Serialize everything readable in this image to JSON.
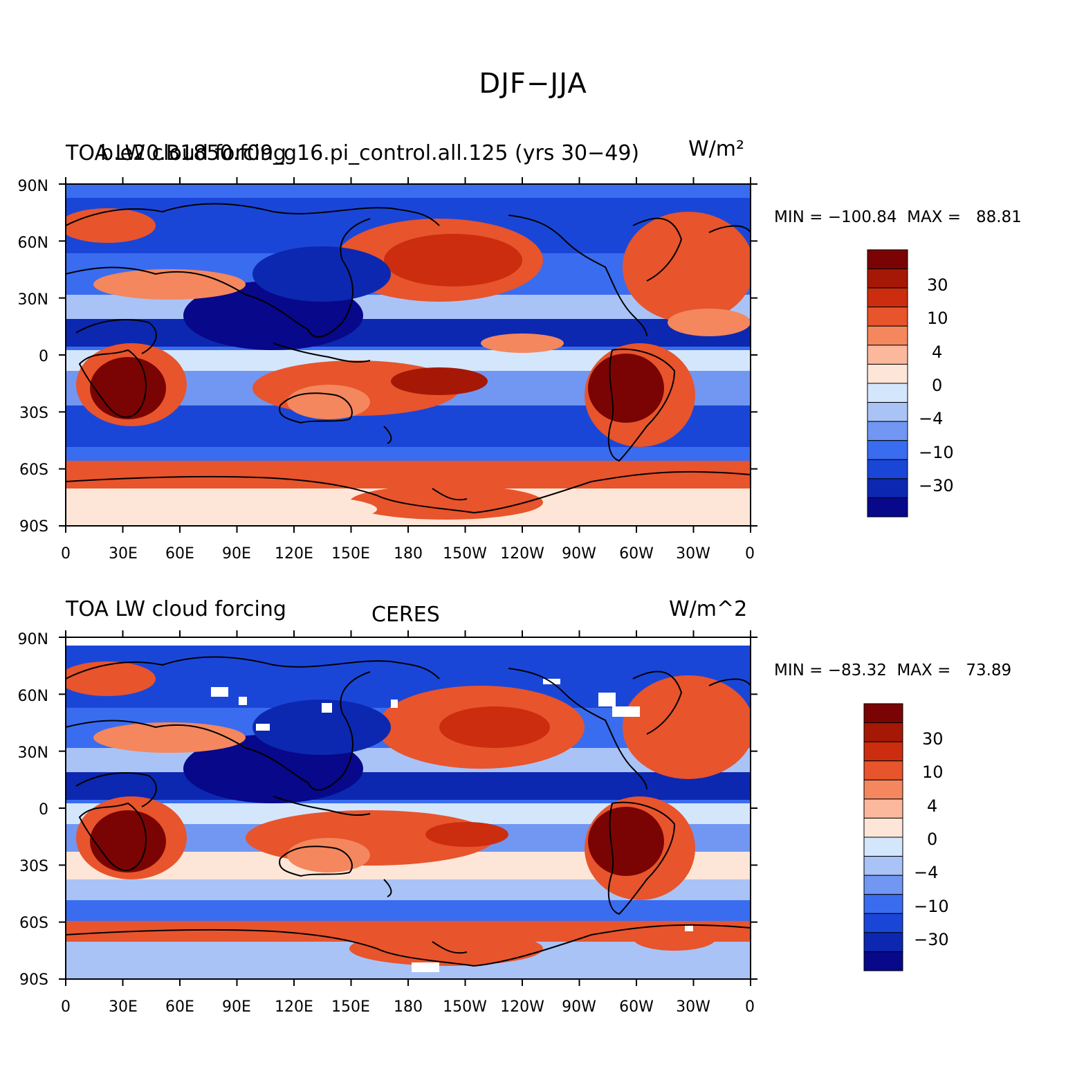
{
  "figure": {
    "title": "DJF−JJA"
  },
  "axes": {
    "lat_labels": [
      "90N",
      "60N",
      "30N",
      "0",
      "30S",
      "60S",
      "90S"
    ],
    "lon_labels": [
      "0",
      "30E",
      "60E",
      "90E",
      "120E",
      "150E",
      "180",
      "150W",
      "120W",
      "90W",
      "60W",
      "30W",
      "0"
    ]
  },
  "colors": {
    "palette": [
      "#08088a",
      "#0c28b0",
      "#1a46d8",
      "#3a6cf0",
      "#7197f2",
      "#a9c3f6",
      "#d4e6fb",
      "#fde6d7",
      "#fbb89c",
      "#f4875d",
      "#e8542c",
      "#cc2d0e",
      "#a61806",
      "#7a0403"
    ],
    "land_outline": "#000000"
  },
  "panels": [
    {
      "left_title": "TOA LW cloud forcing",
      "center_title": "b.e20.B1850.f09_g16.pi_control.all.125 (yrs 30−49)",
      "units": "W/m²",
      "stats": "MIN = −100.84  MAX =   88.81",
      "colorbar_labels": [
        "30",
        "10",
        "4",
        "0",
        "−4",
        "−10",
        "−30"
      ]
    },
    {
      "left_title": "TOA LW cloud forcing",
      "center_title": "CERES",
      "units": "W/m^2",
      "stats": "MIN = −83.32  MAX =   73.89",
      "colorbar_labels": [
        "30",
        "10",
        "4",
        "0",
        "−4",
        "−10",
        "−30"
      ]
    }
  ]
}
